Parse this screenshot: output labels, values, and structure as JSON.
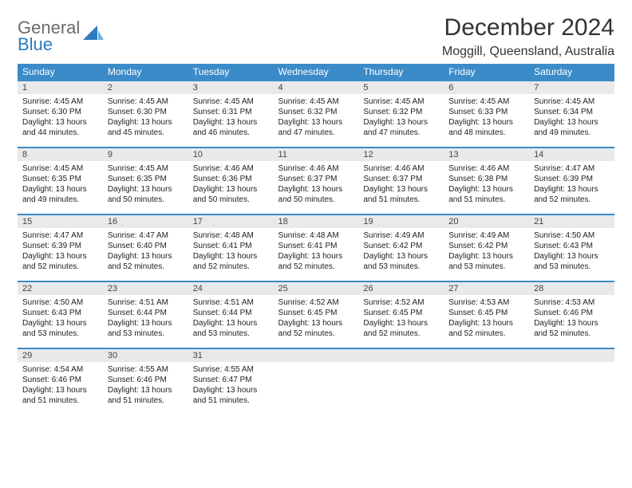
{
  "brand": {
    "line1": "General",
    "line2": "Blue"
  },
  "title": "December 2024",
  "location": "Moggill, Queensland, Australia",
  "colors": {
    "header_bg": "#3b8bc8",
    "header_fg": "#ffffff",
    "row_border": "#3b8bc8",
    "daynum_bg": "#e9e9ea",
    "brand_gray": "#6a6a6a",
    "brand_blue": "#2d7bbf",
    "page_bg": "#ffffff"
  },
  "weekdays": [
    "Sunday",
    "Monday",
    "Tuesday",
    "Wednesday",
    "Thursday",
    "Friday",
    "Saturday"
  ],
  "weeks": [
    [
      {
        "n": "1",
        "sr": "Sunrise: 4:45 AM",
        "ss": "Sunset: 6:30 PM",
        "dl": "Daylight: 13 hours and 44 minutes."
      },
      {
        "n": "2",
        "sr": "Sunrise: 4:45 AM",
        "ss": "Sunset: 6:30 PM",
        "dl": "Daylight: 13 hours and 45 minutes."
      },
      {
        "n": "3",
        "sr": "Sunrise: 4:45 AM",
        "ss": "Sunset: 6:31 PM",
        "dl": "Daylight: 13 hours and 46 minutes."
      },
      {
        "n": "4",
        "sr": "Sunrise: 4:45 AM",
        "ss": "Sunset: 6:32 PM",
        "dl": "Daylight: 13 hours and 47 minutes."
      },
      {
        "n": "5",
        "sr": "Sunrise: 4:45 AM",
        "ss": "Sunset: 6:32 PM",
        "dl": "Daylight: 13 hours and 47 minutes."
      },
      {
        "n": "6",
        "sr": "Sunrise: 4:45 AM",
        "ss": "Sunset: 6:33 PM",
        "dl": "Daylight: 13 hours and 48 minutes."
      },
      {
        "n": "7",
        "sr": "Sunrise: 4:45 AM",
        "ss": "Sunset: 6:34 PM",
        "dl": "Daylight: 13 hours and 49 minutes."
      }
    ],
    [
      {
        "n": "8",
        "sr": "Sunrise: 4:45 AM",
        "ss": "Sunset: 6:35 PM",
        "dl": "Daylight: 13 hours and 49 minutes."
      },
      {
        "n": "9",
        "sr": "Sunrise: 4:45 AM",
        "ss": "Sunset: 6:35 PM",
        "dl": "Daylight: 13 hours and 50 minutes."
      },
      {
        "n": "10",
        "sr": "Sunrise: 4:46 AM",
        "ss": "Sunset: 6:36 PM",
        "dl": "Daylight: 13 hours and 50 minutes."
      },
      {
        "n": "11",
        "sr": "Sunrise: 4:46 AM",
        "ss": "Sunset: 6:37 PM",
        "dl": "Daylight: 13 hours and 50 minutes."
      },
      {
        "n": "12",
        "sr": "Sunrise: 4:46 AM",
        "ss": "Sunset: 6:37 PM",
        "dl": "Daylight: 13 hours and 51 minutes."
      },
      {
        "n": "13",
        "sr": "Sunrise: 4:46 AM",
        "ss": "Sunset: 6:38 PM",
        "dl": "Daylight: 13 hours and 51 minutes."
      },
      {
        "n": "14",
        "sr": "Sunrise: 4:47 AM",
        "ss": "Sunset: 6:39 PM",
        "dl": "Daylight: 13 hours and 52 minutes."
      }
    ],
    [
      {
        "n": "15",
        "sr": "Sunrise: 4:47 AM",
        "ss": "Sunset: 6:39 PM",
        "dl": "Daylight: 13 hours and 52 minutes."
      },
      {
        "n": "16",
        "sr": "Sunrise: 4:47 AM",
        "ss": "Sunset: 6:40 PM",
        "dl": "Daylight: 13 hours and 52 minutes."
      },
      {
        "n": "17",
        "sr": "Sunrise: 4:48 AM",
        "ss": "Sunset: 6:41 PM",
        "dl": "Daylight: 13 hours and 52 minutes."
      },
      {
        "n": "18",
        "sr": "Sunrise: 4:48 AM",
        "ss": "Sunset: 6:41 PM",
        "dl": "Daylight: 13 hours and 52 minutes."
      },
      {
        "n": "19",
        "sr": "Sunrise: 4:49 AM",
        "ss": "Sunset: 6:42 PM",
        "dl": "Daylight: 13 hours and 53 minutes."
      },
      {
        "n": "20",
        "sr": "Sunrise: 4:49 AM",
        "ss": "Sunset: 6:42 PM",
        "dl": "Daylight: 13 hours and 53 minutes."
      },
      {
        "n": "21",
        "sr": "Sunrise: 4:50 AM",
        "ss": "Sunset: 6:43 PM",
        "dl": "Daylight: 13 hours and 53 minutes."
      }
    ],
    [
      {
        "n": "22",
        "sr": "Sunrise: 4:50 AM",
        "ss": "Sunset: 6:43 PM",
        "dl": "Daylight: 13 hours and 53 minutes."
      },
      {
        "n": "23",
        "sr": "Sunrise: 4:51 AM",
        "ss": "Sunset: 6:44 PM",
        "dl": "Daylight: 13 hours and 53 minutes."
      },
      {
        "n": "24",
        "sr": "Sunrise: 4:51 AM",
        "ss": "Sunset: 6:44 PM",
        "dl": "Daylight: 13 hours and 53 minutes."
      },
      {
        "n": "25",
        "sr": "Sunrise: 4:52 AM",
        "ss": "Sunset: 6:45 PM",
        "dl": "Daylight: 13 hours and 52 minutes."
      },
      {
        "n": "26",
        "sr": "Sunrise: 4:52 AM",
        "ss": "Sunset: 6:45 PM",
        "dl": "Daylight: 13 hours and 52 minutes."
      },
      {
        "n": "27",
        "sr": "Sunrise: 4:53 AM",
        "ss": "Sunset: 6:45 PM",
        "dl": "Daylight: 13 hours and 52 minutes."
      },
      {
        "n": "28",
        "sr": "Sunrise: 4:53 AM",
        "ss": "Sunset: 6:46 PM",
        "dl": "Daylight: 13 hours and 52 minutes."
      }
    ],
    [
      {
        "n": "29",
        "sr": "Sunrise: 4:54 AM",
        "ss": "Sunset: 6:46 PM",
        "dl": "Daylight: 13 hours and 51 minutes."
      },
      {
        "n": "30",
        "sr": "Sunrise: 4:55 AM",
        "ss": "Sunset: 6:46 PM",
        "dl": "Daylight: 13 hours and 51 minutes."
      },
      {
        "n": "31",
        "sr": "Sunrise: 4:55 AM",
        "ss": "Sunset: 6:47 PM",
        "dl": "Daylight: 13 hours and 51 minutes."
      },
      null,
      null,
      null,
      null
    ]
  ]
}
